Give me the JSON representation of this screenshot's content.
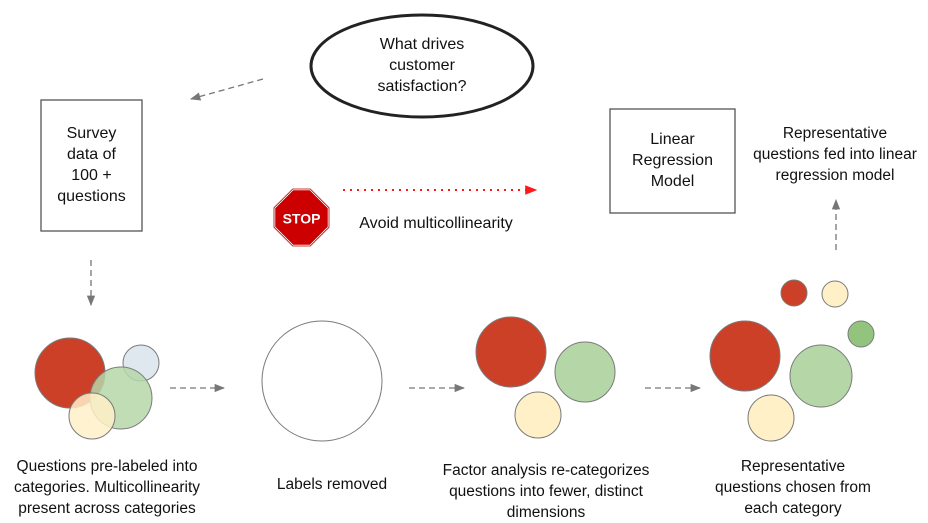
{
  "question": "What drives\ncustomer\nsatisfaction?",
  "survey_box": "Survey\ndata of\n100 +\nquestions",
  "model_box": "Linear\nRegression\nModel",
  "stop_sign": "STOP",
  "avoid_text": "Avoid multicollinearity",
  "fed_text": "Representative\nquestions fed into linear\nregression model",
  "steps": [
    "Questions pre-labeled into\ncategories. Multicollinearity\npresent across categories",
    "Labels removed",
    "Factor analysis re-categorizes\nquestions into fewer, distinct\ndimensions",
    "Representative\nquestions chosen from\neach category"
  ],
  "colors": {
    "red": "#cd4028",
    "green": "#b5d7a8",
    "cream": "#fff0c8",
    "grey_blue": "#dfe8ef",
    "small_green": "#93c47d",
    "stop_red": "#cc0000",
    "avoid_arrow": "#ff1a1a",
    "gray_arrow": "#777777"
  }
}
